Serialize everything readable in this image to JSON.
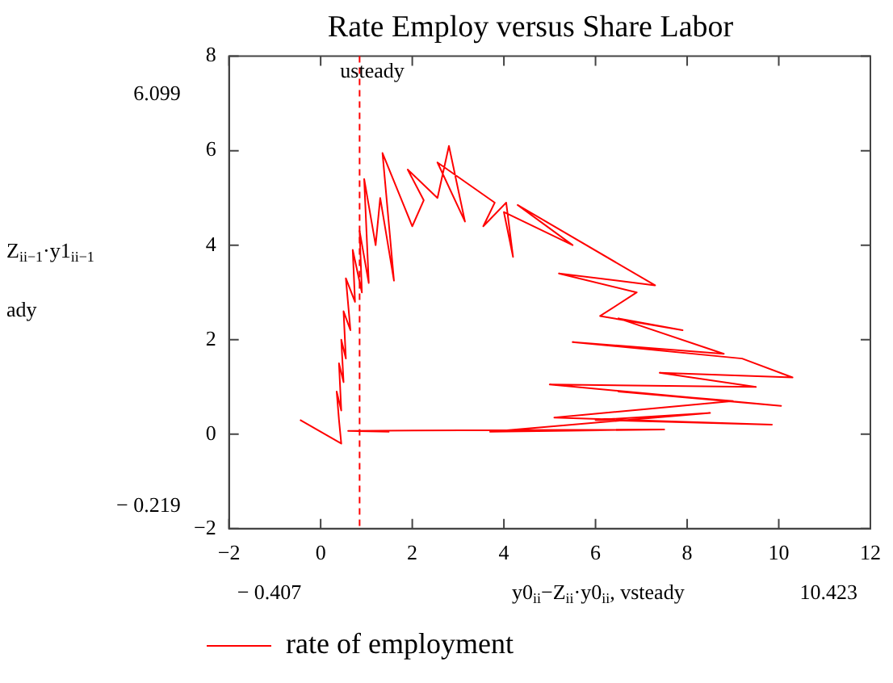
{
  "chart_data": {
    "type": "line",
    "title": "Rate Employ versus Share Labor",
    "xlabel": "y0$_{ii}$−Z$_{ii}$·y0$_{ii}$, vsteady",
    "ylabel": "Z$_{ii−1}$·y1$_{ii−1}$",
    "annotations": [
      "6.099",
      "− 0.219",
      "− 0.407",
      "10.423",
      "ady"
    ],
    "xlim": [
      -2,
      12
    ],
    "xticks": [
      -2,
      0,
      2,
      4,
      6,
      8,
      10,
      12
    ],
    "ylim": [
      -2,
      8
    ],
    "yticks": [
      -2,
      0,
      2,
      4,
      6,
      8
    ],
    "grid": false,
    "legend": "bottom left",
    "marker": "none",
    "line_style": "solid",
    "ref_lines": [
      {
        "axis": "x",
        "value": 0.85,
        "label": "usteady",
        "color": "#ff0000",
        "line_style": "dashed"
      }
    ],
    "series": [
      {
        "name": "rate of employment",
        "color": "#ff0000",
        "x": [
          -0.45,
          0.45,
          0.4,
          0.35,
          0.45,
          0.4,
          0.5,
          0.45,
          0.55,
          0.5,
          0.65,
          0.55,
          0.75,
          0.7,
          0.9,
          0.85,
          1.05,
          0.95,
          1.2,
          1.3,
          1.6,
          1.35,
          2.0,
          2.25,
          1.9,
          2.55,
          2.8,
          3.15,
          2.55,
          3.8,
          3.55,
          4.05,
          4.2,
          4.0,
          5.5,
          4.3,
          7.3,
          5.2,
          6.9,
          6.1,
          7.9,
          6.5,
          8.8,
          5.5,
          9.2,
          10.3,
          7.4,
          9.5,
          5.0,
          10.05,
          6.5,
          9.0,
          5.1,
          9.85,
          6.0,
          8.5,
          3.7,
          7.5,
          0.6,
          1.5
        ],
        "values": [
          0.3,
          -0.2,
          0.3,
          0.9,
          0.5,
          1.5,
          1.1,
          2.0,
          1.6,
          2.6,
          2.2,
          3.3,
          2.8,
          3.9,
          3.0,
          4.3,
          3.2,
          5.4,
          4.0,
          5.0,
          3.25,
          5.95,
          4.4,
          4.95,
          5.6,
          5.0,
          6.1,
          4.5,
          5.75,
          4.9,
          4.4,
          4.9,
          3.75,
          4.7,
          4.0,
          4.85,
          3.15,
          3.4,
          3.0,
          2.5,
          2.2,
          2.45,
          1.7,
          1.95,
          1.6,
          1.2,
          1.3,
          1.0,
          1.05,
          0.6,
          0.9,
          0.7,
          0.35,
          0.2,
          0.3,
          0.45,
          0.05,
          0.1,
          0.07,
          0.05
        ]
      }
    ]
  }
}
